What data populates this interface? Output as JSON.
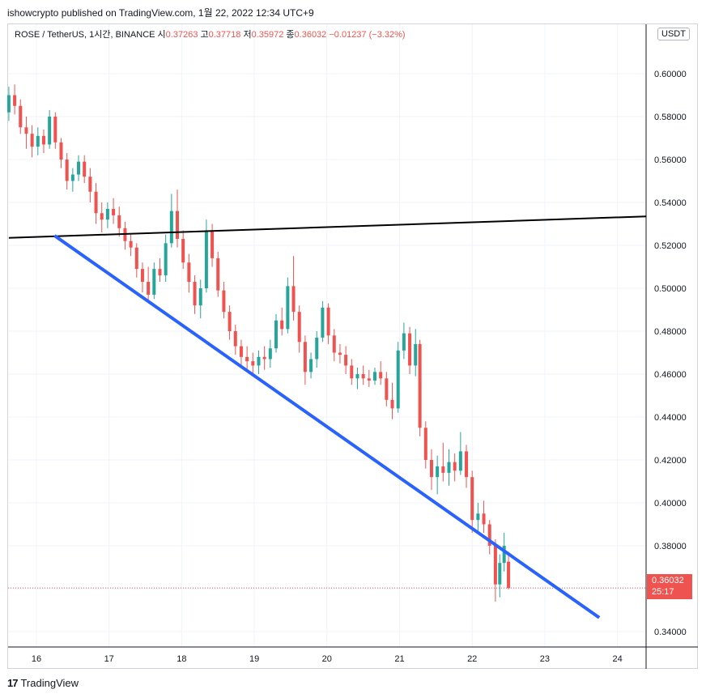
{
  "header": {
    "published_text": "ishowcrypto published on TradingView.com, 1월 22, 2022 12:34 UTC+9"
  },
  "legend": {
    "symbol": "ROSE / TetherUS, 1시간, BINANCE",
    "open_label": "시",
    "open_value": "0.37263",
    "high_label": "고",
    "high_value": "0.37718",
    "low_label": "저",
    "low_value": "0.35972",
    "close_label": "종",
    "close_value": "0.36032",
    "change": "−0.01237 (−3.32%)"
  },
  "currency_button": "USDT",
  "price_tag": {
    "price": "0.36032",
    "countdown": "25:17"
  },
  "footer": {
    "brand": "TradingView"
  },
  "colors": {
    "up": "#26a69a",
    "down": "#ef5350",
    "trend_blue": "#2962ff",
    "trend_black": "#000000",
    "grid": "#f0f3fa"
  },
  "chart_data": {
    "type": "candlestick",
    "title": "",
    "xlabel": "",
    "ylabel": "",
    "x_ticks": [
      "16",
      "17",
      "18",
      "19",
      "20",
      "21",
      "22",
      "23",
      "24"
    ],
    "y_ticks": [
      "0.60000",
      "0.58000",
      "0.56000",
      "0.54000",
      "0.52000",
      "0.50000",
      "0.48000",
      "0.46000",
      "0.44000",
      "0.42000",
      "0.40000",
      "0.38000",
      "0.36000",
      "0.34000"
    ],
    "ylim": [
      0.3295,
      0.6095
    ],
    "xlim": [
      15.6,
      24.45
    ],
    "last_price": 0.36032,
    "series": [
      {
        "x": 15.62,
        "ohlc": [
          0.582,
          0.594,
          0.578,
          0.59
        ]
      },
      {
        "x": 15.7,
        "ohlc": [
          0.59,
          0.595,
          0.581,
          0.585
        ]
      },
      {
        "x": 15.78,
        "ohlc": [
          0.585,
          0.588,
          0.572,
          0.575
        ]
      },
      {
        "x": 15.86,
        "ohlc": [
          0.575,
          0.58,
          0.565,
          0.572
        ]
      },
      {
        "x": 15.94,
        "ohlc": [
          0.572,
          0.576,
          0.561,
          0.566
        ]
      },
      {
        "x": 16.02,
        "ohlc": [
          0.566,
          0.575,
          0.562,
          0.571
        ]
      },
      {
        "x": 16.1,
        "ohlc": [
          0.571,
          0.574,
          0.563,
          0.567
        ]
      },
      {
        "x": 16.18,
        "ohlc": [
          0.567,
          0.583,
          0.565,
          0.58
        ]
      },
      {
        "x": 16.26,
        "ohlc": [
          0.58,
          0.582,
          0.565,
          0.568
        ]
      },
      {
        "x": 16.34,
        "ohlc": [
          0.568,
          0.57,
          0.556,
          0.56
        ]
      },
      {
        "x": 16.42,
        "ohlc": [
          0.56,
          0.563,
          0.546,
          0.55
        ]
      },
      {
        "x": 16.5,
        "ohlc": [
          0.55,
          0.556,
          0.545,
          0.553
        ]
      },
      {
        "x": 16.58,
        "ohlc": [
          0.553,
          0.562,
          0.55,
          0.559
        ]
      },
      {
        "x": 16.66,
        "ohlc": [
          0.559,
          0.562,
          0.549,
          0.552
        ]
      },
      {
        "x": 16.74,
        "ohlc": [
          0.552,
          0.556,
          0.54,
          0.545
        ]
      },
      {
        "x": 16.82,
        "ohlc": [
          0.545,
          0.549,
          0.53,
          0.535
        ]
      },
      {
        "x": 16.9,
        "ohlc": [
          0.535,
          0.54,
          0.526,
          0.532
        ]
      },
      {
        "x": 16.98,
        "ohlc": [
          0.532,
          0.54,
          0.528,
          0.537
        ]
      },
      {
        "x": 17.06,
        "ohlc": [
          0.537,
          0.542,
          0.53,
          0.534
        ]
      },
      {
        "x": 17.14,
        "ohlc": [
          0.534,
          0.538,
          0.524,
          0.528
        ]
      },
      {
        "x": 17.22,
        "ohlc": [
          0.528,
          0.531,
          0.518,
          0.522
        ]
      },
      {
        "x": 17.3,
        "ohlc": [
          0.522,
          0.525,
          0.515,
          0.519
        ]
      },
      {
        "x": 17.38,
        "ohlc": [
          0.519,
          0.521,
          0.505,
          0.509
        ]
      },
      {
        "x": 17.46,
        "ohlc": [
          0.509,
          0.512,
          0.498,
          0.503
        ]
      },
      {
        "x": 17.54,
        "ohlc": [
          0.503,
          0.51,
          0.494,
          0.497
        ]
      },
      {
        "x": 17.62,
        "ohlc": [
          0.497,
          0.512,
          0.495,
          0.509
        ]
      },
      {
        "x": 17.7,
        "ohlc": [
          0.509,
          0.514,
          0.503,
          0.506
        ]
      },
      {
        "x": 17.78,
        "ohlc": [
          0.506,
          0.525,
          0.503,
          0.521
        ]
      },
      {
        "x": 17.86,
        "ohlc": [
          0.521,
          0.544,
          0.519,
          0.536
        ]
      },
      {
        "x": 17.94,
        "ohlc": [
          0.536,
          0.546,
          0.519,
          0.523
        ]
      },
      {
        "x": 18.02,
        "ohlc": [
          0.523,
          0.527,
          0.509,
          0.512
        ]
      },
      {
        "x": 18.1,
        "ohlc": [
          0.512,
          0.516,
          0.498,
          0.503
        ]
      },
      {
        "x": 18.18,
        "ohlc": [
          0.503,
          0.506,
          0.488,
          0.492
        ]
      },
      {
        "x": 18.26,
        "ohlc": [
          0.492,
          0.504,
          0.486,
          0.5
        ]
      },
      {
        "x": 18.34,
        "ohlc": [
          0.5,
          0.532,
          0.498,
          0.527
        ]
      },
      {
        "x": 18.42,
        "ohlc": [
          0.527,
          0.53,
          0.51,
          0.514
        ]
      },
      {
        "x": 18.5,
        "ohlc": [
          0.514,
          0.517,
          0.496,
          0.499
        ]
      },
      {
        "x": 18.58,
        "ohlc": [
          0.499,
          0.503,
          0.486,
          0.489
        ]
      },
      {
        "x": 18.66,
        "ohlc": [
          0.489,
          0.492,
          0.476,
          0.48
        ]
      },
      {
        "x": 18.74,
        "ohlc": [
          0.48,
          0.483,
          0.469,
          0.473
        ]
      },
      {
        "x": 18.82,
        "ohlc": [
          0.473,
          0.476,
          0.463,
          0.468
        ]
      },
      {
        "x": 18.9,
        "ohlc": [
          0.468,
          0.473,
          0.462,
          0.466
        ]
      },
      {
        "x": 18.98,
        "ohlc": [
          0.466,
          0.47,
          0.459,
          0.464
        ]
      },
      {
        "x": 19.06,
        "ohlc": [
          0.464,
          0.471,
          0.46,
          0.468
        ]
      },
      {
        "x": 19.14,
        "ohlc": [
          0.468,
          0.473,
          0.462,
          0.467
        ]
      },
      {
        "x": 19.22,
        "ohlc": [
          0.467,
          0.476,
          0.463,
          0.472
        ]
      },
      {
        "x": 19.3,
        "ohlc": [
          0.472,
          0.488,
          0.47,
          0.485
        ]
      },
      {
        "x": 19.38,
        "ohlc": [
          0.485,
          0.491,
          0.478,
          0.481
        ]
      },
      {
        "x": 19.46,
        "ohlc": [
          0.481,
          0.505,
          0.479,
          0.501
        ]
      },
      {
        "x": 19.54,
        "ohlc": [
          0.501,
          0.515,
          0.485,
          0.489
        ]
      },
      {
        "x": 19.62,
        "ohlc": [
          0.489,
          0.492,
          0.47,
          0.475
        ]
      },
      {
        "x": 19.7,
        "ohlc": [
          0.475,
          0.478,
          0.455,
          0.461
        ]
      },
      {
        "x": 19.78,
        "ohlc": [
          0.461,
          0.47,
          0.458,
          0.467
        ]
      },
      {
        "x": 19.86,
        "ohlc": [
          0.467,
          0.48,
          0.463,
          0.477
        ]
      },
      {
        "x": 19.94,
        "ohlc": [
          0.477,
          0.494,
          0.475,
          0.491
        ]
      },
      {
        "x": 20.02,
        "ohlc": [
          0.491,
          0.493,
          0.474,
          0.478
        ]
      },
      {
        "x": 20.1,
        "ohlc": [
          0.478,
          0.481,
          0.466,
          0.47
        ]
      },
      {
        "x": 20.18,
        "ohlc": [
          0.47,
          0.474,
          0.465,
          0.469
        ]
      },
      {
        "x": 20.26,
        "ohlc": [
          0.469,
          0.473,
          0.46,
          0.464
        ]
      },
      {
        "x": 20.34,
        "ohlc": [
          0.464,
          0.467,
          0.455,
          0.458
        ]
      },
      {
        "x": 20.42,
        "ohlc": [
          0.458,
          0.463,
          0.453,
          0.46
        ]
      },
      {
        "x": 20.5,
        "ohlc": [
          0.46,
          0.464,
          0.455,
          0.458
        ]
      },
      {
        "x": 20.58,
        "ohlc": [
          0.458,
          0.462,
          0.454,
          0.457
        ]
      },
      {
        "x": 20.66,
        "ohlc": [
          0.457,
          0.463,
          0.455,
          0.461
        ]
      },
      {
        "x": 20.74,
        "ohlc": [
          0.461,
          0.466,
          0.455,
          0.458
        ]
      },
      {
        "x": 20.82,
        "ohlc": [
          0.458,
          0.461,
          0.445,
          0.448
        ]
      },
      {
        "x": 20.9,
        "ohlc": [
          0.448,
          0.456,
          0.439,
          0.444
        ]
      },
      {
        "x": 20.98,
        "ohlc": [
          0.444,
          0.475,
          0.442,
          0.471
        ]
      },
      {
        "x": 21.06,
        "ohlc": [
          0.471,
          0.484,
          0.467,
          0.479
        ]
      },
      {
        "x": 21.14,
        "ohlc": [
          0.479,
          0.482,
          0.46,
          0.464
        ]
      },
      {
        "x": 21.22,
        "ohlc": [
          0.464,
          0.481,
          0.459,
          0.474
        ]
      },
      {
        "x": 21.28,
        "ohlc": [
          0.474,
          0.476,
          0.431,
          0.435
        ]
      },
      {
        "x": 21.36,
        "ohlc": [
          0.435,
          0.438,
          0.416,
          0.42
        ]
      },
      {
        "x": 21.44,
        "ohlc": [
          0.42,
          0.425,
          0.406,
          0.412
        ]
      },
      {
        "x": 21.52,
        "ohlc": [
          0.412,
          0.422,
          0.404,
          0.417
        ]
      },
      {
        "x": 21.6,
        "ohlc": [
          0.417,
          0.428,
          0.41,
          0.414
        ]
      },
      {
        "x": 21.68,
        "ohlc": [
          0.414,
          0.425,
          0.408,
          0.419
        ]
      },
      {
        "x": 21.76,
        "ohlc": [
          0.419,
          0.423,
          0.41,
          0.415
        ]
      },
      {
        "x": 21.84,
        "ohlc": [
          0.415,
          0.433,
          0.413,
          0.424
        ]
      },
      {
        "x": 21.92,
        "ohlc": [
          0.424,
          0.427,
          0.407,
          0.412
        ]
      },
      {
        "x": 22.0,
        "ohlc": [
          0.412,
          0.415,
          0.386,
          0.392
        ]
      },
      {
        "x": 22.08,
        "ohlc": [
          0.392,
          0.4,
          0.387,
          0.395
        ]
      },
      {
        "x": 22.16,
        "ohlc": [
          0.395,
          0.401,
          0.386,
          0.39
        ]
      },
      {
        "x": 22.24,
        "ohlc": [
          0.39,
          0.392,
          0.376,
          0.38
        ]
      },
      {
        "x": 22.32,
        "ohlc": [
          0.38,
          0.383,
          0.354,
          0.362
        ]
      },
      {
        "x": 22.38,
        "ohlc": [
          0.362,
          0.376,
          0.356,
          0.372
        ]
      },
      {
        "x": 22.44,
        "ohlc": [
          0.372,
          0.386,
          0.368,
          0.38
        ]
      },
      {
        "x": 22.5,
        "ohlc": [
          0.3726,
          0.3772,
          0.3597,
          0.3603
        ]
      }
    ],
    "annotations": {
      "black_trendline": {
        "from": [
          15.62,
          0.5235
        ],
        "to": [
          24.4,
          0.5335
        ]
      },
      "blue_trendline": {
        "from": [
          16.25,
          0.5245
        ],
        "to": [
          23.75,
          0.3465
        ]
      }
    }
  }
}
